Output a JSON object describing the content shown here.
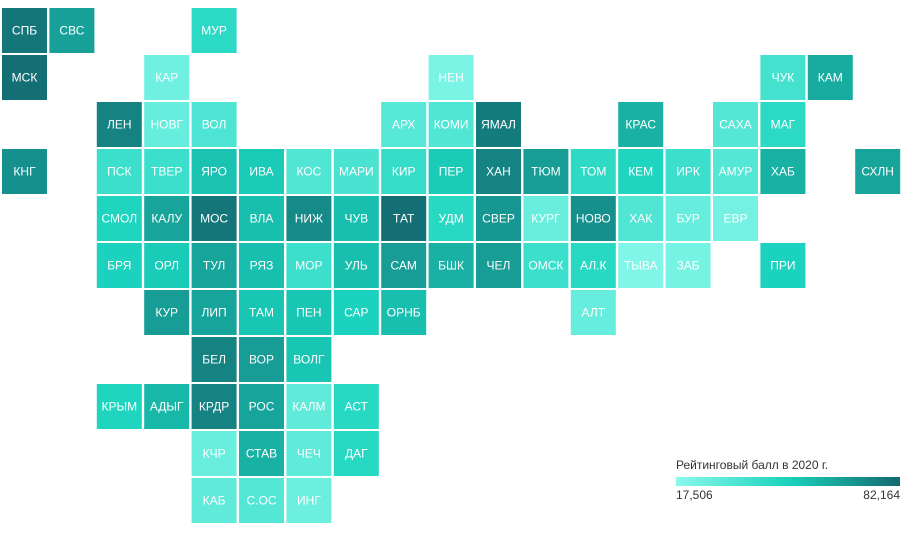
{
  "map": {
    "colors": [
      "#8af9ec",
      "#1ad3bd",
      "#14686f"
    ],
    "legend": {
      "title": "Рейтинговый балл в 2020 г.",
      "min": {
        "value": 17506,
        "label": "17,506"
      },
      "max": {
        "value": 82164,
        "label": "82,164"
      }
    },
    "regions": [
      {
        "name": "СПБ",
        "value": 78000
      },
      {
        "name": "СВС",
        "value": 65000
      },
      {
        "name": "МУР",
        "value": 45000
      },
      {
        "name": "МСК",
        "value": 80000
      },
      {
        "name": "КАР",
        "value": 25000
      },
      {
        "name": "НЕН",
        "value": 22000
      },
      {
        "name": "ЧУК",
        "value": 38000
      },
      {
        "name": "КАМ",
        "value": 62000
      },
      {
        "name": "ЛЕН",
        "value": 74000
      },
      {
        "name": "НОВГ",
        "value": 28000
      },
      {
        "name": "ВОЛ",
        "value": 35000
      },
      {
        "name": "АРХ",
        "value": 32000
      },
      {
        "name": "КОМИ",
        "value": 34000
      },
      {
        "name": "ЯМАЛ",
        "value": 76000
      },
      {
        "name": "КРАС",
        "value": 60000
      },
      {
        "name": "САХА",
        "value": 33000
      },
      {
        "name": "МАГ",
        "value": 45000
      },
      {
        "name": "КНГ",
        "value": 70000
      },
      {
        "name": "ПСК",
        "value": 40000
      },
      {
        "name": "ТВЕР",
        "value": 40000
      },
      {
        "name": "ЯРО",
        "value": 55000
      },
      {
        "name": "ИВА",
        "value": 52000
      },
      {
        "name": "КОС",
        "value": 34000
      },
      {
        "name": "МАРИ",
        "value": 36000
      },
      {
        "name": "КИР",
        "value": 42000
      },
      {
        "name": "ПЕР",
        "value": 52000
      },
      {
        "name": "ХАН",
        "value": 74000
      },
      {
        "name": "ТЮМ",
        "value": 66000
      },
      {
        "name": "ТОМ",
        "value": 44000
      },
      {
        "name": "КЕМ",
        "value": 48000
      },
      {
        "name": "ИРК",
        "value": 40000
      },
      {
        "name": "АМУР",
        "value": 33000
      },
      {
        "name": "ХАБ",
        "value": 60000
      },
      {
        "name": "СХЛН",
        "value": 64000
      },
      {
        "name": "СМОЛ",
        "value": 48000
      },
      {
        "name": "КАЛУ",
        "value": 64000
      },
      {
        "name": "МОС",
        "value": 78000
      },
      {
        "name": "ВЛА",
        "value": 56000
      },
      {
        "name": "НИЖ",
        "value": 72000
      },
      {
        "name": "ЧУВ",
        "value": 56000
      },
      {
        "name": "ТАТ",
        "value": 80000
      },
      {
        "name": "УДМ",
        "value": 46000
      },
      {
        "name": "СВЕР",
        "value": 68000
      },
      {
        "name": "КУРГ",
        "value": 27000
      },
      {
        "name": "НОВО",
        "value": 70000
      },
      {
        "name": "ХАК",
        "value": 34000
      },
      {
        "name": "БУР",
        "value": 28000
      },
      {
        "name": "ЕВР",
        "value": 24000
      },
      {
        "name": "БРЯ",
        "value": 50000
      },
      {
        "name": "ОРЛ",
        "value": 52000
      },
      {
        "name": "ТУЛ",
        "value": 64000
      },
      {
        "name": "РЯЗ",
        "value": 56000
      },
      {
        "name": "МОР",
        "value": 40000
      },
      {
        "name": "УЛЬ",
        "value": 56000
      },
      {
        "name": "САМ",
        "value": 66000
      },
      {
        "name": "БШК",
        "value": 60000
      },
      {
        "name": "ЧЕЛ",
        "value": 66000
      },
      {
        "name": "ОМСК",
        "value": 40000
      },
      {
        "name": "АЛ.К",
        "value": 46000
      },
      {
        "name": "ТЫВА",
        "value": 20000
      },
      {
        "name": "ЗАБ",
        "value": 23000
      },
      {
        "name": "ПРИ",
        "value": 50000
      },
      {
        "name": "КУР",
        "value": 66000
      },
      {
        "name": "ЛИП",
        "value": 64000
      },
      {
        "name": "ТАМ",
        "value": 54000
      },
      {
        "name": "ПЕН",
        "value": 54000
      },
      {
        "name": "САР",
        "value": 50000
      },
      {
        "name": "ОРНБ",
        "value": 56000
      },
      {
        "name": "АЛТ",
        "value": 28000
      },
      {
        "name": "БЕЛ",
        "value": 74000
      },
      {
        "name": "ВОР",
        "value": 66000
      },
      {
        "name": "ВОЛГ",
        "value": 54000
      },
      {
        "name": "КРЫМ",
        "value": 48000
      },
      {
        "name": "АДЫГ",
        "value": 58000
      },
      {
        "name": "КРДР",
        "value": 74000
      },
      {
        "name": "РОС",
        "value": 64000
      },
      {
        "name": "КАЛМ",
        "value": 30000
      },
      {
        "name": "АСТ",
        "value": 46000
      },
      {
        "name": "КЧР",
        "value": 27000
      },
      {
        "name": "СТАВ",
        "value": 60000
      },
      {
        "name": "ЧЕЧ",
        "value": 30000
      },
      {
        "name": "ДАГ",
        "value": 46000
      },
      {
        "name": "КАБ",
        "value": 30000
      },
      {
        "name": "С.ОС",
        "value": 33000
      },
      {
        "name": "ИНГ",
        "value": 26000
      }
    ]
  }
}
